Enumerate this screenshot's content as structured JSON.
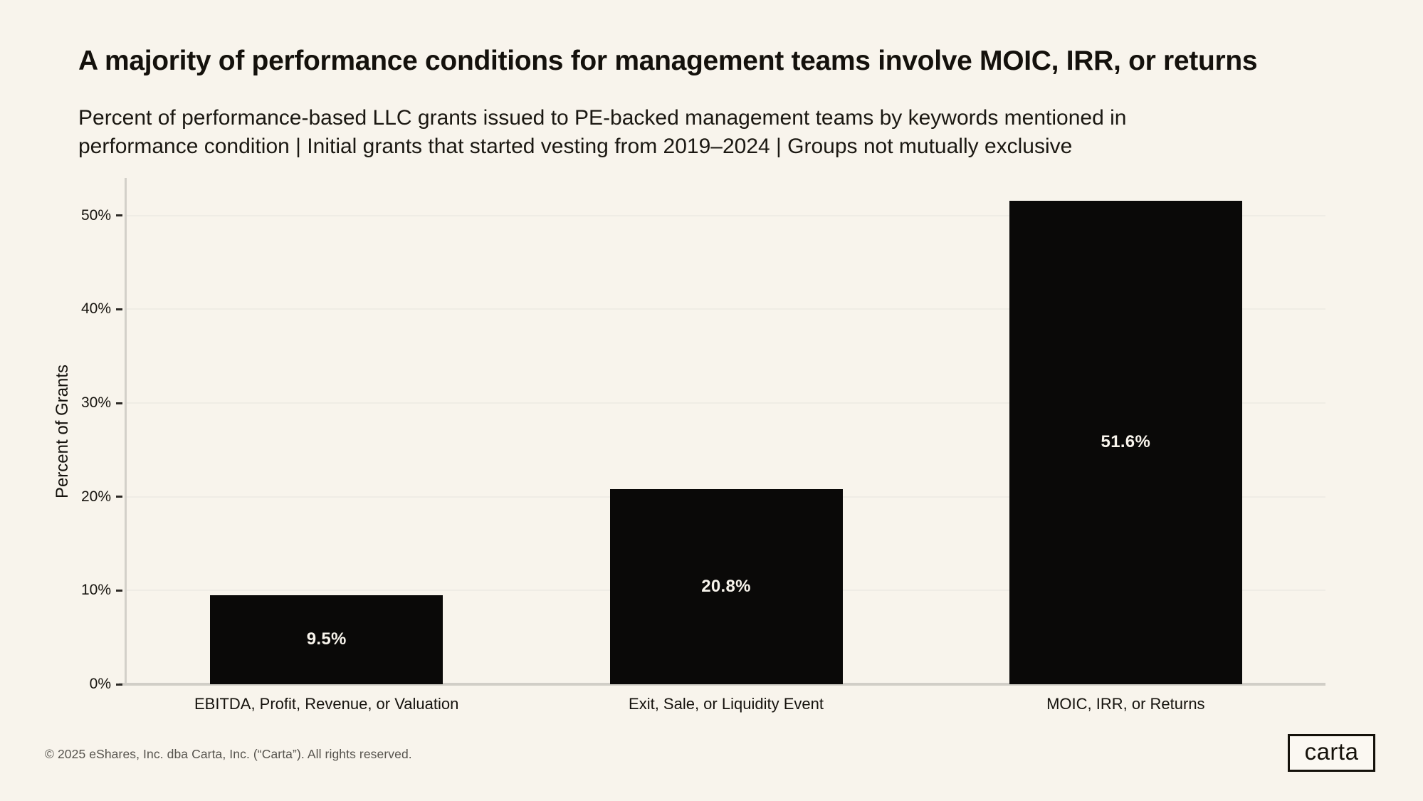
{
  "header": {
    "title": "A majority of performance conditions for management teams involve MOIC, IRR, or returns",
    "subtitle_line1": "Percent of performance-based LLC grants issued to PE-backed management teams by keywords mentioned in",
    "subtitle_line2": "performance condition | Initial grants that started vesting from 2019–2024 | Groups not mutually exclusive"
  },
  "chart_data": {
    "type": "bar",
    "title": "A majority of performance conditions for management teams involve MOIC, IRR, or returns",
    "categories": [
      "EBITDA, Profit, Revenue, or Valuation",
      "Exit, Sale, or Liquidity Event",
      "MOIC, IRR, or Returns"
    ],
    "values": [
      9.5,
      20.8,
      51.6
    ],
    "value_labels": [
      "9.5%",
      "20.8%",
      "51.6%"
    ],
    "xlabel": "",
    "ylabel": "Percent of Grants",
    "ylim": [
      0,
      54
    ],
    "yticks": [
      0,
      10,
      20,
      30,
      40,
      50
    ],
    "ytick_labels": [
      "0%",
      "10%",
      "20%",
      "30%",
      "40%",
      "50%"
    ],
    "grid": "horizontal",
    "legend": "none",
    "bar_color": "#0A0908",
    "value_label_color": "#F8F4EC",
    "background_color": "#F8F4EC"
  },
  "footer": {
    "copyright": "© 2025 eShares, Inc. dba Carta, Inc. (“Carta”). All rights reserved.",
    "logo_text": "carta"
  }
}
